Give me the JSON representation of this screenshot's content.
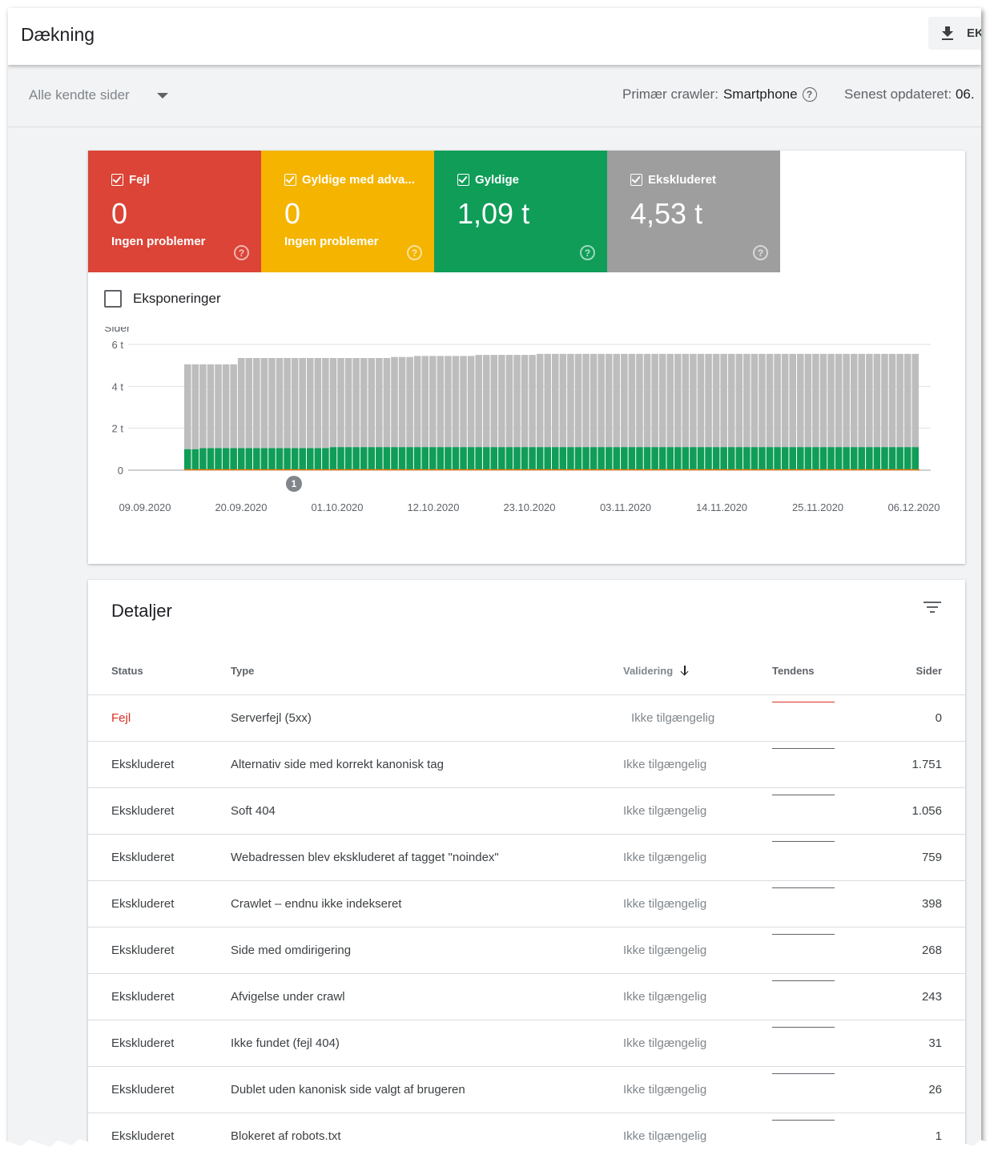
{
  "header": {
    "title": "Dækning",
    "export_label": "EK"
  },
  "filters": {
    "page_select": "Alle kendte sider",
    "crawler_label": "Primær crawler:",
    "crawler_value": "Smartphone",
    "updated_label": "Senest opdateret:",
    "updated_value": "06."
  },
  "tiles": [
    {
      "label": "Fejl",
      "value": "0",
      "sub": "Ingen problemer",
      "color": "#db4437"
    },
    {
      "label": "Gyldige med adva...",
      "value": "0",
      "sub": "Ingen problemer",
      "color": "#f4b400"
    },
    {
      "label": "Gyldige",
      "value": "1,09 t",
      "sub": "",
      "color": "#0f9d58"
    },
    {
      "label": "Ekskluderet",
      "value": "4,53 t",
      "sub": "",
      "color": "#9e9e9e"
    }
  ],
  "impressions_label": "Eksponeringer",
  "chart_data": {
    "type": "bar",
    "stacked": true,
    "ylabel": "Sider",
    "y_ticks": [
      "0",
      "2 t",
      "4 t",
      "6 t"
    ],
    "ylim": [
      0,
      6000
    ],
    "x_tick_labels": [
      "09.09.2020",
      "20.09.2020",
      "01.10.2020",
      "12.10.2020",
      "23.10.2020",
      "03.11.2020",
      "14.11.2020",
      "25.11.2020",
      "06.12.2020"
    ],
    "annotation": "1",
    "series": [
      {
        "name": "Ekskluderet",
        "color": "#bdbdbd",
        "total_values": [
          5050,
          5050,
          5050,
          5050,
          5050,
          5050,
          5050,
          5350,
          5350,
          5350,
          5350,
          5350,
          5350,
          5350,
          5350,
          5350,
          5350,
          5350,
          5350,
          5350,
          5350,
          5350,
          5350,
          5350,
          5350,
          5350,
          5350,
          5400,
          5400,
          5400,
          5450,
          5450,
          5450,
          5450,
          5450,
          5450,
          5450,
          5450,
          5500,
          5500,
          5500,
          5500,
          5500,
          5500,
          5500,
          5500,
          5550,
          5550,
          5550,
          5550,
          5550,
          5550,
          5550,
          5550,
          5550,
          5550,
          5550,
          5550,
          5550,
          5550,
          5550,
          5550,
          5550,
          5550,
          5550,
          5550,
          5550,
          5550,
          5550,
          5550,
          5550,
          5550,
          5550,
          5550,
          5550,
          5550,
          5550,
          5550,
          5550,
          5550,
          5550,
          5550,
          5550,
          5550,
          5550,
          5550,
          5550,
          5550,
          5550,
          5550,
          5550,
          5550,
          5550,
          5550,
          5550,
          5550
        ]
      },
      {
        "name": "Gyldige",
        "color": "#0f9d58",
        "values": [
          1000,
          1000,
          1050,
          1050,
          1050,
          1050,
          1050,
          1050,
          1050,
          1050,
          1050,
          1050,
          1050,
          1050,
          1050,
          1050,
          1050,
          1050,
          1050,
          1100,
          1100,
          1100,
          1100,
          1100,
          1100,
          1100,
          1100,
          1100,
          1100,
          1100,
          1100,
          1100,
          1100,
          1100,
          1100,
          1100,
          1100,
          1100,
          1100,
          1100,
          1100,
          1100,
          1100,
          1100,
          1100,
          1100,
          1100,
          1100,
          1100,
          1100,
          1100,
          1100,
          1100,
          1100,
          1100,
          1100,
          1100,
          1100,
          1100,
          1100,
          1100,
          1100,
          1100,
          1100,
          1100,
          1100,
          1100,
          1100,
          1100,
          1100,
          1100,
          1100,
          1100,
          1100,
          1100,
          1100,
          1100,
          1100,
          1100,
          1100,
          1100,
          1100,
          1100,
          1100,
          1100,
          1100,
          1100,
          1100,
          1100,
          1100,
          1100,
          1100,
          1100,
          1100,
          1100,
          1100
        ]
      },
      {
        "name": "Fejl",
        "color": "#db4437",
        "values": []
      }
    ]
  },
  "details": {
    "title": "Detaljer",
    "columns": {
      "status": "Status",
      "type": "Type",
      "validation": "Validering",
      "trend": "Tendens",
      "pages": "Sider"
    },
    "rows": [
      {
        "status": "Fejl",
        "type": "Serverfejl (5xx)",
        "validation": "Ikke tilgængelig",
        "pages": "0",
        "trend_color": "#d93025",
        "is_error": true
      },
      {
        "status": "Ekskluderet",
        "type": "Alternativ side med korrekt kanonisk tag",
        "validation": "Ikke tilgængelig",
        "pages": "1.751",
        "trend_color": "#5f6368"
      },
      {
        "status": "Ekskluderet",
        "type": "Soft 404",
        "validation": "Ikke tilgængelig",
        "pages": "1.056",
        "trend_color": "#5f6368"
      },
      {
        "status": "Ekskluderet",
        "type": "Webadressen blev ekskluderet af tagget \"noindex\"",
        "validation": "Ikke tilgængelig",
        "pages": "759",
        "trend_color": "#5f6368"
      },
      {
        "status": "Ekskluderet",
        "type": "Crawlet – endnu ikke indekseret",
        "validation": "Ikke tilgængelig",
        "pages": "398",
        "trend_color": "#5f6368"
      },
      {
        "status": "Ekskluderet",
        "type": "Side med omdirigering",
        "validation": "Ikke tilgængelig",
        "pages": "268",
        "trend_color": "#5f6368"
      },
      {
        "status": "Ekskluderet",
        "type": "Afvigelse under crawl",
        "validation": "Ikke tilgængelig",
        "pages": "243",
        "trend_color": "#5f6368"
      },
      {
        "status": "Ekskluderet",
        "type": "Ikke fundet (fejl 404)",
        "validation": "Ikke tilgængelig",
        "pages": "31",
        "trend_color": "#5f6368"
      },
      {
        "status": "Ekskluderet",
        "type": "Dublet uden kanonisk side valgt af brugeren",
        "validation": "Ikke tilgængelig",
        "pages": "26",
        "trend_color": "#5f6368"
      },
      {
        "status": "Ekskluderet",
        "type": "Blokeret af robots.txt",
        "validation": "Ikke tilgængelig",
        "pages": "1",
        "trend_color": "#5f6368"
      }
    ]
  }
}
